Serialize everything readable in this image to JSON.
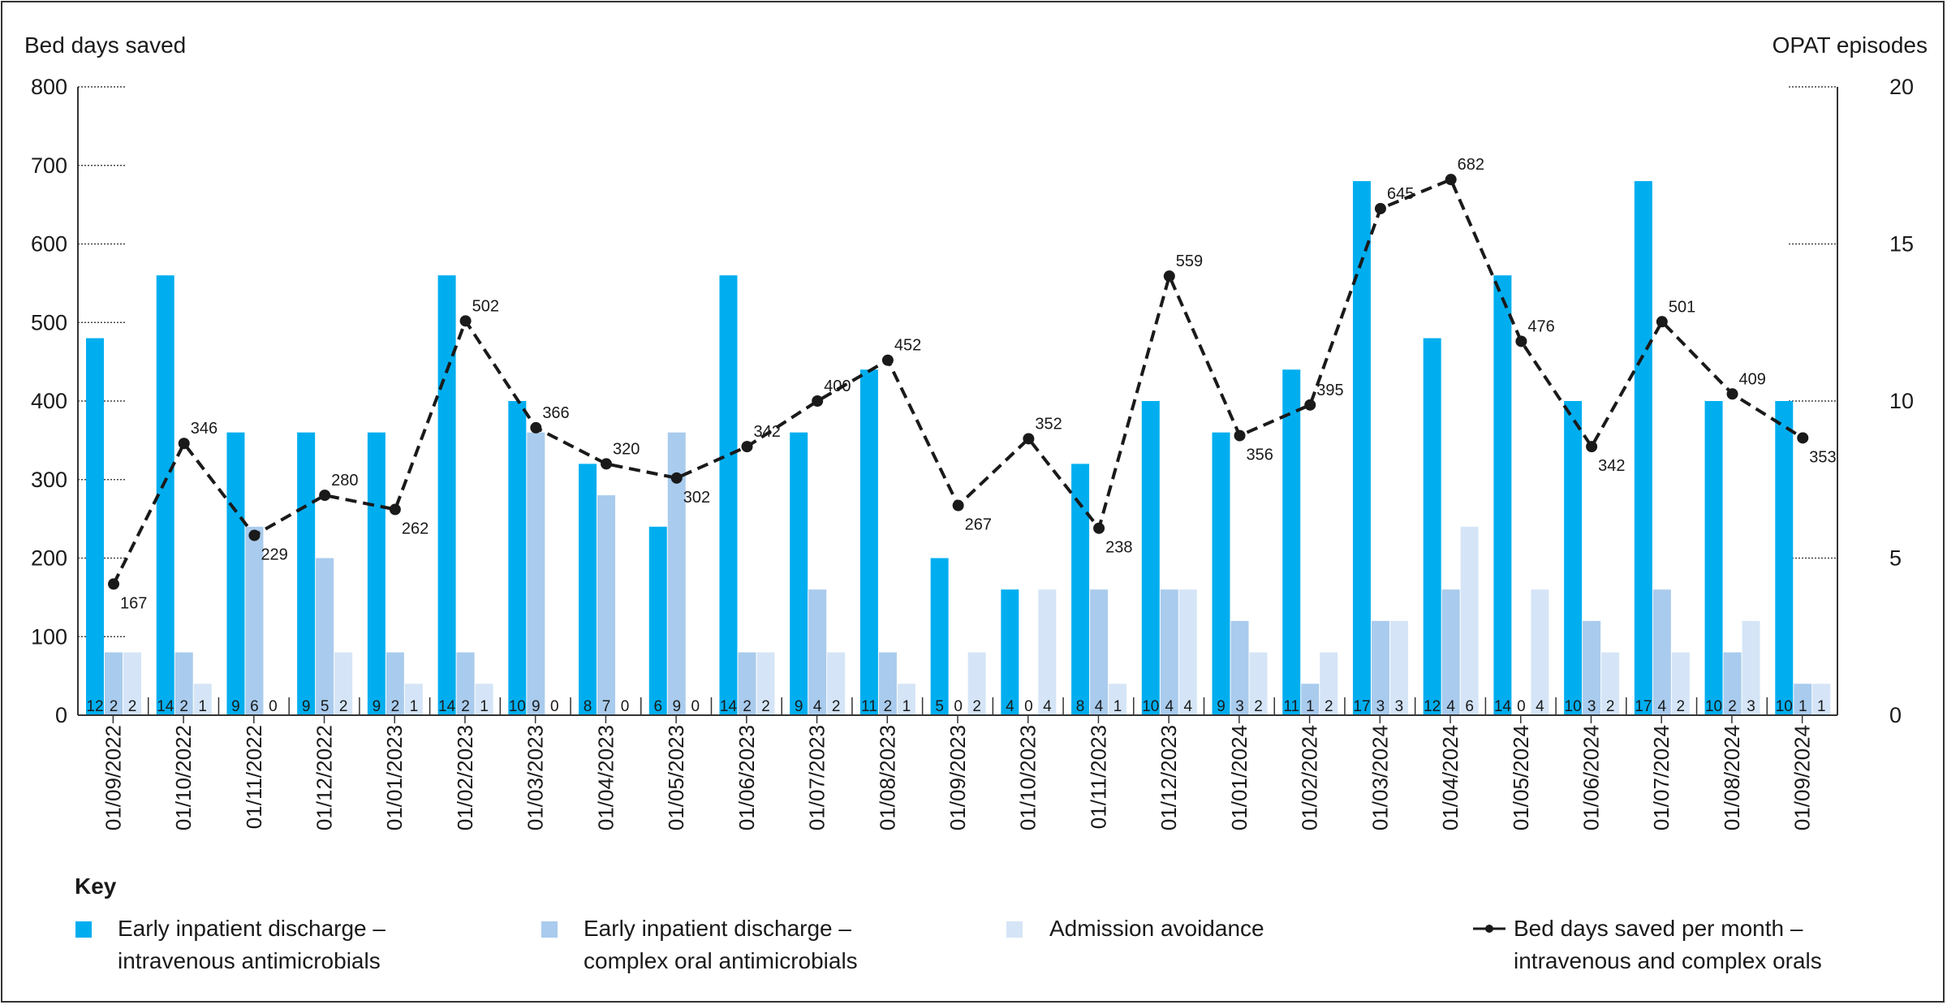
{
  "chart_data": {
    "type": "bar",
    "subtype": "grouped bar with line overlay",
    "y_left_label": "Bed days saved",
    "y_right_label": "OPAT episodes",
    "y_left_ticks": [
      "0",
      "100",
      "200",
      "300",
      "400",
      "500",
      "600",
      "700",
      "800"
    ],
    "y_right_ticks": [
      "0",
      "5",
      "10",
      "15",
      "20"
    ],
    "ylim_left": [
      0,
      800
    ],
    "ylim_right": [
      0,
      20
    ],
    "categories": [
      "01/09/2022",
      "01/10/2022",
      "01/11/2022",
      "01/12/2022",
      "01/01/2023",
      "01/02/2023",
      "01/03/2023",
      "01/04/2023",
      "01/05/2023",
      "01/06/2023",
      "01/07/2023",
      "01/08/2023",
      "01/09/2023",
      "01/10/2023",
      "01/11/2023",
      "01/12/2023",
      "01/01/2024",
      "01/02/2024",
      "01/03/2024",
      "01/04/2024",
      "01/05/2024",
      "01/06/2024",
      "01/07/2024",
      "01/08/2024",
      "01/09/2024"
    ],
    "series": [
      {
        "name": "Early inpatient discharge – intravenous antimicrobials",
        "axis": "right",
        "color": "#00aeef",
        "values": [
          12,
          14,
          9,
          9,
          9,
          14,
          10,
          8,
          6,
          14,
          9,
          11,
          5,
          4,
          8,
          10,
          9,
          11,
          17,
          12,
          14,
          10,
          17,
          10,
          10
        ]
      },
      {
        "name": "Early inpatient discharge – complex oral antimicrobials",
        "axis": "right",
        "color": "#a9cbed",
        "values": [
          2,
          2,
          6,
          5,
          2,
          2,
          9,
          7,
          9,
          2,
          4,
          2,
          0,
          0,
          4,
          4,
          3,
          1,
          3,
          4,
          0,
          3,
          4,
          2,
          1
        ]
      },
      {
        "name": "Admission avoidance",
        "axis": "right",
        "color": "#d5e5f7",
        "values": [
          2,
          1,
          0,
          2,
          1,
          1,
          0,
          0,
          0,
          2,
          2,
          1,
          2,
          4,
          1,
          4,
          2,
          2,
          3,
          6,
          4,
          2,
          2,
          3,
          1
        ]
      },
      {
        "name": "Bed days saved per month – intravenous and complex orals",
        "axis": "left",
        "type": "line",
        "color": "#1a1a1a",
        "values": [
          167,
          346,
          229,
          280,
          262,
          502,
          366,
          320,
          302,
          342,
          400,
          452,
          267,
          352,
          238,
          559,
          356,
          395,
          645,
          682,
          476,
          342,
          501,
          409,
          353
        ]
      }
    ],
    "grid": false,
    "legend_title": "Key",
    "legend_placement": "bottom",
    "legend": [
      {
        "line1": "Early inpatient discharge –",
        "line2": "intravenous antimicrobials"
      },
      {
        "line1": "Early inpatient discharge –",
        "line2": "complex oral antimicrobials"
      },
      {
        "line1": "Admission avoidance",
        "line2": ""
      },
      {
        "line1": "Bed days saved per month –",
        "line2": "intravenous and complex orals"
      }
    ]
  }
}
